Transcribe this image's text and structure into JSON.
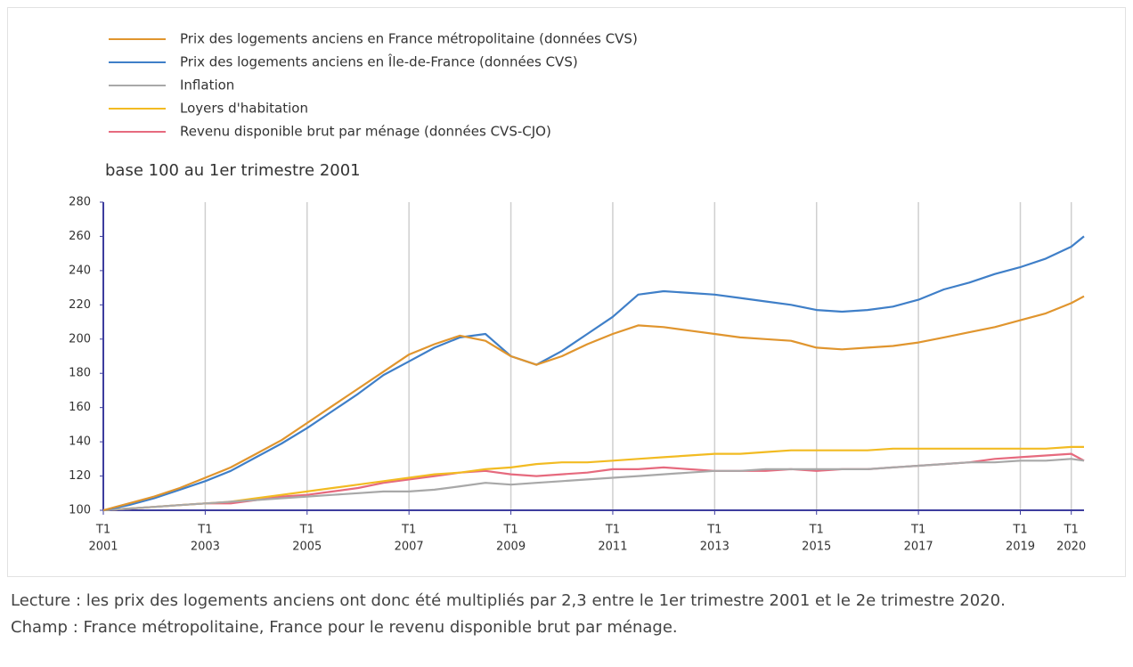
{
  "chart_data": {
    "type": "line",
    "subtitle": "base 100 au 1er trimestre 2001",
    "x": [
      2001,
      2001.5,
      2002,
      2002.5,
      2003,
      2003.5,
      2004,
      2004.5,
      2005,
      2005.5,
      2006,
      2006.5,
      2007,
      2007.5,
      2008,
      2008.5,
      2009,
      2009.5,
      2010,
      2010.5,
      2011,
      2011.5,
      2012,
      2012.5,
      2013,
      2013.5,
      2014,
      2014.5,
      2015,
      2015.5,
      2016,
      2016.5,
      2017,
      2017.5,
      2018,
      2018.5,
      2019,
      2019.5,
      2020,
      2020.25
    ],
    "series": [
      {
        "name": "Prix des logements anciens en France métropolitaine (données CVS)",
        "color": "#e0952e",
        "values": [
          100,
          104,
          108,
          113,
          119,
          125,
          133,
          141,
          151,
          161,
          171,
          181,
          191,
          197,
          202,
          199,
          190,
          185,
          190,
          197,
          203,
          208,
          207,
          205,
          203,
          201,
          200,
          199,
          195,
          194,
          195,
          196,
          198,
          201,
          204,
          207,
          211,
          215,
          221,
          225
        ]
      },
      {
        "name": "Prix des logements anciens en Île-de-France (données CVS)",
        "color": "#3f7fc8",
        "values": [
          100,
          103,
          107,
          112,
          117,
          123,
          131,
          139,
          148,
          158,
          168,
          179,
          187,
          195,
          201,
          203,
          190,
          185,
          193,
          203,
          213,
          226,
          228,
          227,
          226,
          224,
          222,
          220,
          217,
          216,
          217,
          219,
          223,
          229,
          233,
          238,
          242,
          247,
          254,
          260
        ]
      },
      {
        "name": "Inflation",
        "color": "#a8a8a8",
        "values": [
          100,
          101,
          102,
          103,
          104,
          105,
          106,
          107,
          108,
          109,
          110,
          111,
          111,
          112,
          114,
          116,
          115,
          116,
          117,
          118,
          119,
          120,
          121,
          122,
          123,
          123,
          124,
          124,
          124,
          124,
          124,
          125,
          126,
          127,
          128,
          128,
          129,
          129,
          130,
          129
        ]
      },
      {
        "name": "Loyers d'habitation",
        "color": "#f2bb22",
        "values": [
          100,
          101,
          102,
          103,
          104,
          105,
          107,
          109,
          111,
          113,
          115,
          117,
          119,
          121,
          122,
          124,
          125,
          127,
          128,
          128,
          129,
          130,
          131,
          132,
          133,
          133,
          134,
          135,
          135,
          135,
          135,
          136,
          136,
          136,
          136,
          136,
          136,
          136,
          137,
          137
        ]
      },
      {
        "name": "Revenu disponible brut par ménage (données CVS-CJO)",
        "color": "#e66a7e",
        "values": [
          100,
          101,
          102,
          103,
          104,
          104,
          106,
          108,
          109,
          111,
          113,
          116,
          118,
          120,
          122,
          123,
          121,
          120,
          121,
          122,
          124,
          124,
          125,
          124,
          123,
          123,
          123,
          124,
          123,
          124,
          124,
          125,
          126,
          127,
          128,
          130,
          131,
          132,
          133,
          129
        ]
      }
    ],
    "xlim": [
      2001,
      2020.25
    ],
    "xticks": [
      {
        "value": 2001,
        "label": [
          "T1",
          "2001"
        ]
      },
      {
        "value": 2003,
        "label": [
          "T1",
          "2003"
        ]
      },
      {
        "value": 2005,
        "label": [
          "T1",
          "2005"
        ]
      },
      {
        "value": 2007,
        "label": [
          "T1",
          "2007"
        ]
      },
      {
        "value": 2009,
        "label": [
          "T1",
          "2009"
        ]
      },
      {
        "value": 2011,
        "label": [
          "T1",
          "2011"
        ]
      },
      {
        "value": 2013,
        "label": [
          "T1",
          "2013"
        ]
      },
      {
        "value": 2015,
        "label": [
          "T1",
          "2015"
        ]
      },
      {
        "value": 2017,
        "label": [
          "T1",
          "2017"
        ]
      },
      {
        "value": 2019,
        "label": [
          "T1",
          "2019"
        ]
      },
      {
        "value": 2020,
        "label": [
          "T1",
          "2020"
        ]
      }
    ],
    "ylim": [
      100,
      280
    ],
    "yticks": [
      100,
      120,
      140,
      160,
      180,
      200,
      220,
      240,
      260,
      280
    ],
    "grid": "x",
    "notes": [
      "Lecture : les prix des logements anciens ont donc été multipliés par 2,3 entre le 1er trimestre 2001 et le 2e trimestre 2020.",
      "Champ : France métropolitaine, France pour le revenu disponible brut par ménage."
    ]
  }
}
